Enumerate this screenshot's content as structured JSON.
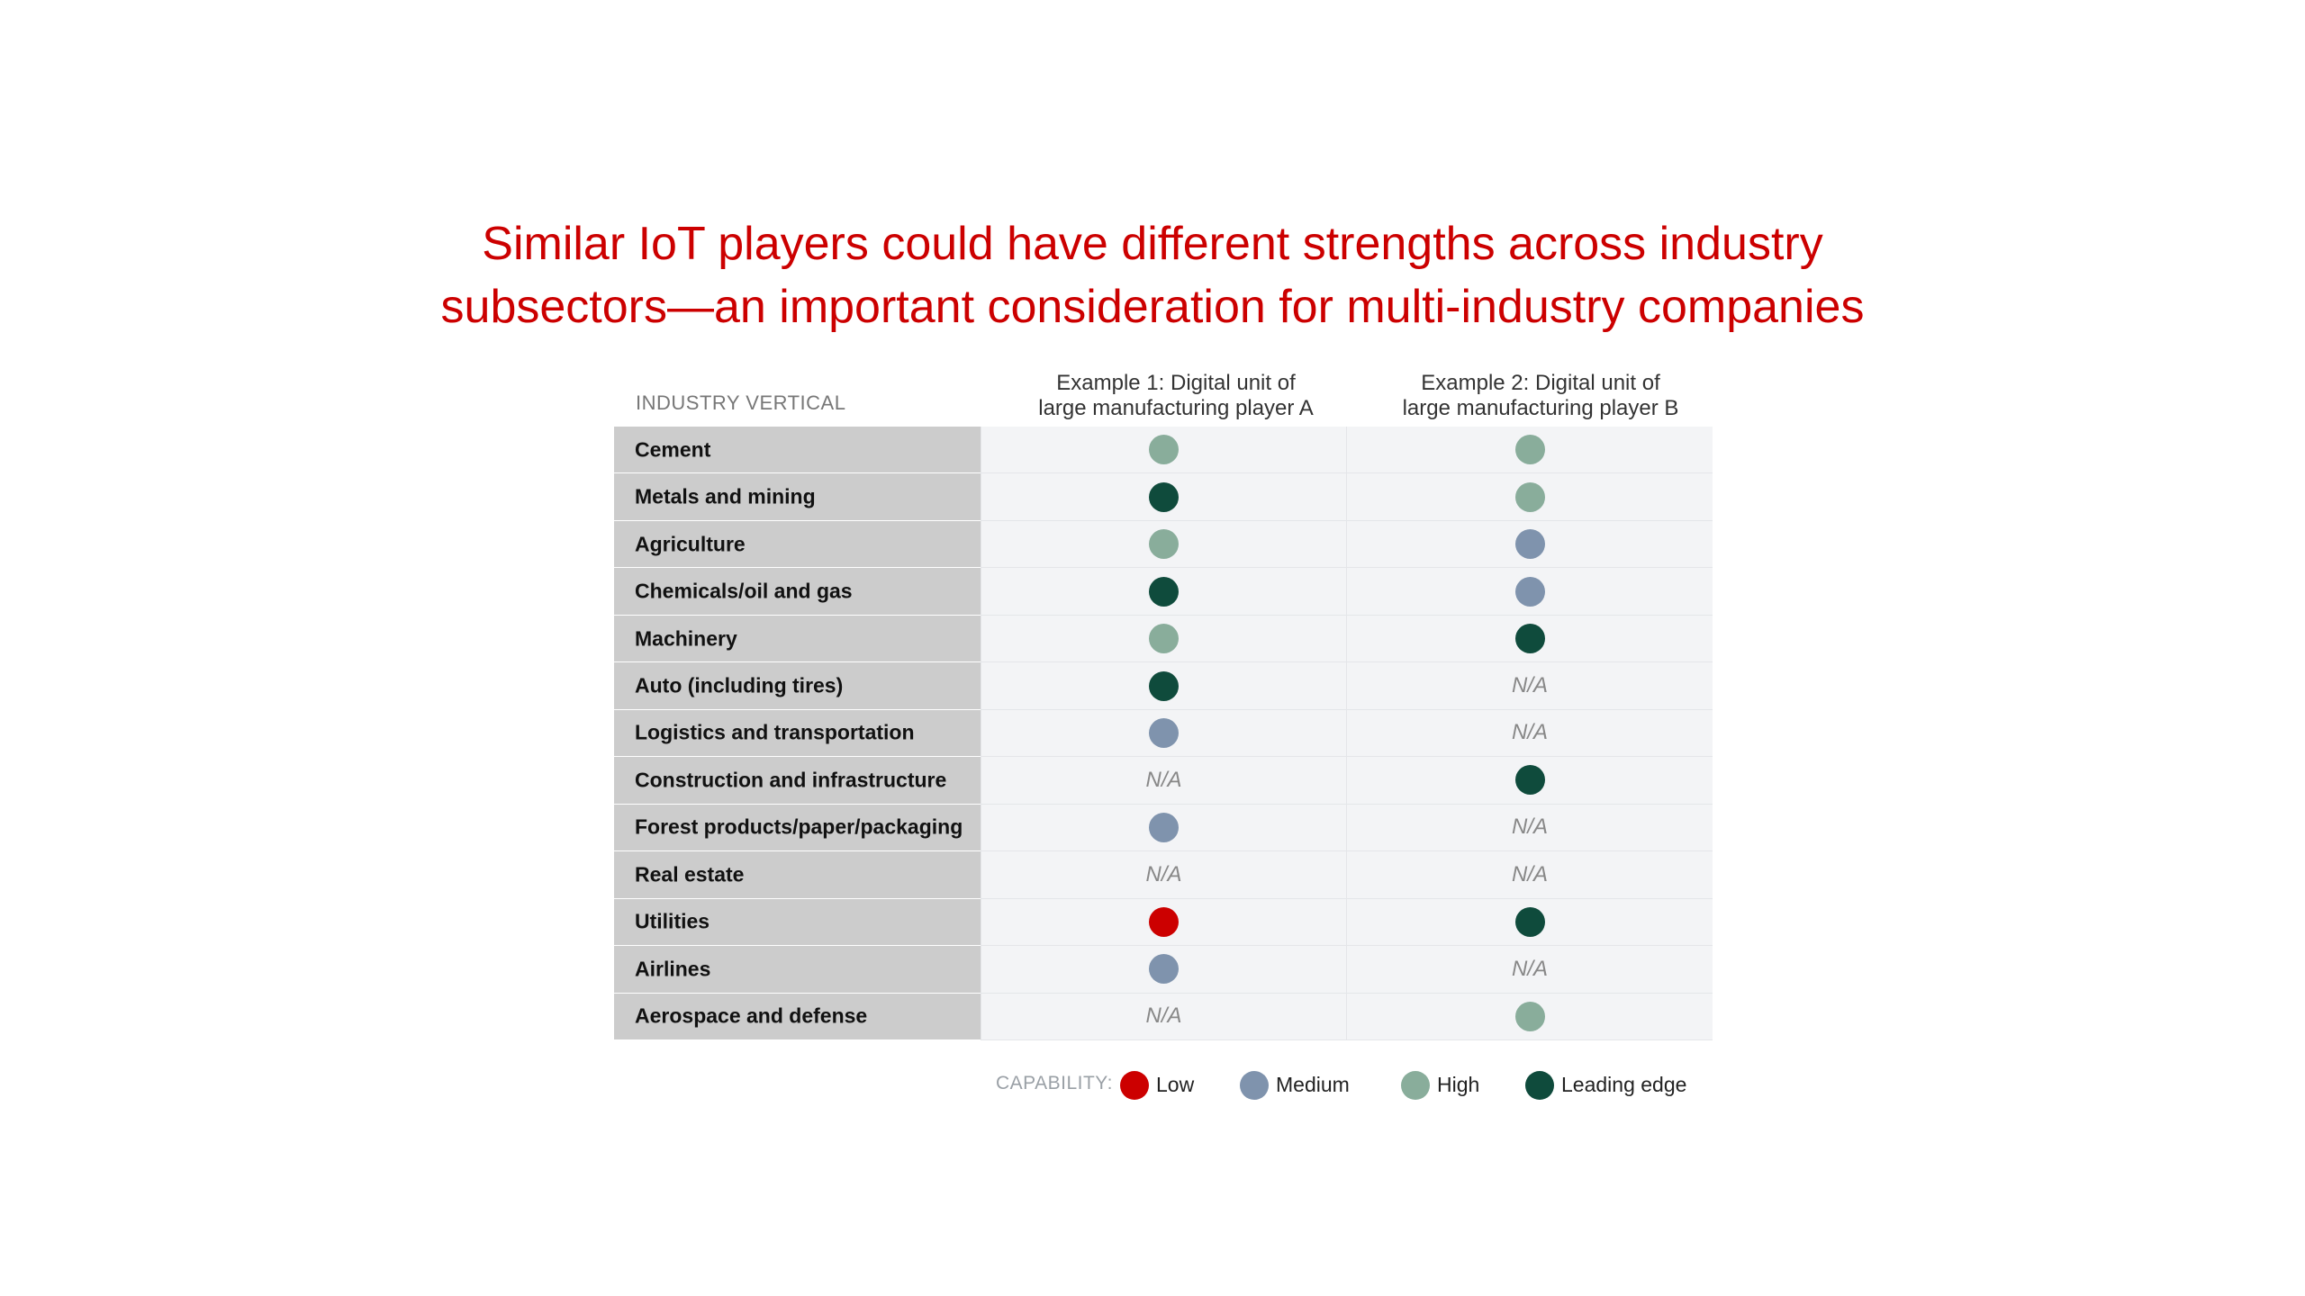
{
  "title": {
    "line1": "Similar IoT players could have different strengths across industry",
    "line2": "subsectors—an important consideration for multi-industry companies"
  },
  "colors": {
    "title": "#cc0000",
    "Low": "#cc0000",
    "Medium": "#7f93ad",
    "High": "#89ad9b",
    "Leading edge": "#0f4b3c"
  },
  "chart_data": {
    "type": "table",
    "row_header": "INDUSTRY VERTICAL",
    "columns": [
      {
        "line1": "Example 1: Digital unit of",
        "line2": "large manufacturing player A"
      },
      {
        "line1": "Example 2: Digital unit of",
        "line2": "large manufacturing player B"
      }
    ],
    "rows": [
      {
        "label": "Cement",
        "values": [
          "High",
          "High"
        ]
      },
      {
        "label": "Metals and mining",
        "values": [
          "Leading edge",
          "High"
        ]
      },
      {
        "label": "Agriculture",
        "values": [
          "High",
          "Medium"
        ]
      },
      {
        "label": "Chemicals/oil and gas",
        "values": [
          "Leading edge",
          "Medium"
        ]
      },
      {
        "label": "Machinery",
        "values": [
          "High",
          "Leading edge"
        ]
      },
      {
        "label": "Auto (including tires)",
        "values": [
          "Leading edge",
          "N/A"
        ]
      },
      {
        "label": "Logistics and transportation",
        "values": [
          "Medium",
          "N/A"
        ]
      },
      {
        "label": "Construction and infrastructure",
        "values": [
          "N/A",
          "Leading edge"
        ]
      },
      {
        "label": "Forest products/paper/packaging",
        "values": [
          "Medium",
          "N/A"
        ]
      },
      {
        "label": "Real estate",
        "values": [
          "N/A",
          "N/A"
        ]
      },
      {
        "label": "Utilities",
        "values": [
          "Low",
          "Leading edge"
        ]
      },
      {
        "label": "Airlines",
        "values": [
          "Medium",
          "N/A"
        ]
      },
      {
        "label": "Aerospace and defense",
        "values": [
          "N/A",
          "High"
        ]
      }
    ],
    "legend": {
      "title": "CAPABILITY:",
      "items": [
        "Low",
        "Medium",
        "High",
        "Leading edge"
      ]
    }
  }
}
